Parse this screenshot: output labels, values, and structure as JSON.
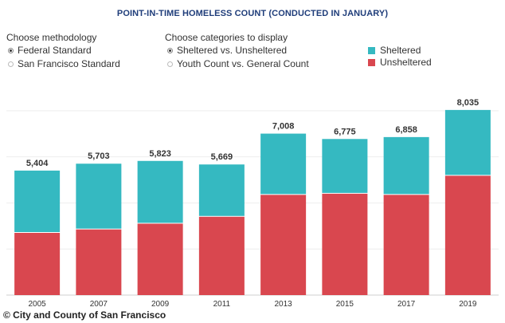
{
  "title": "POINT-IN-TIME HOMELESS COUNT (CONDUCTED IN JANUARY)",
  "methodology": {
    "heading": "Choose methodology",
    "options": [
      {
        "label": "Federal Standard",
        "selected": true
      },
      {
        "label": "San Francisco Standard",
        "selected": false
      }
    ]
  },
  "categories_control": {
    "heading": "Choose categories to display",
    "options": [
      {
        "label": "Sheltered vs. Unsheltered",
        "selected": true
      },
      {
        "label": "Youth Count vs. General Count",
        "selected": false
      }
    ]
  },
  "credit": "© City and County of San Francisco",
  "chart_data": {
    "type": "bar",
    "stacked": true,
    "title": "POINT-IN-TIME HOMELESS COUNT (CONDUCTED IN JANUARY)",
    "categories": [
      "2005",
      "2007",
      "2009",
      "2011",
      "2013",
      "2015",
      "2017",
      "2019"
    ],
    "totals": [
      "5,404",
      "5,703",
      "5,823",
      "5,669",
      "7,008",
      "6,775",
      "6,858",
      "8,035"
    ],
    "series": [
      {
        "name": "Unsheltered",
        "color": "#d9474f",
        "values": [
          2700,
          2850,
          3100,
          3400,
          4350,
          4400,
          4350,
          5180
        ]
      },
      {
        "name": "Sheltered",
        "color": "#35b9c1",
        "values": [
          2704,
          2853,
          2723,
          2269,
          2658,
          2375,
          2508,
          2855
        ]
      }
    ],
    "ylim": [
      0,
      9000
    ],
    "grid": true,
    "legend": "top-right"
  }
}
